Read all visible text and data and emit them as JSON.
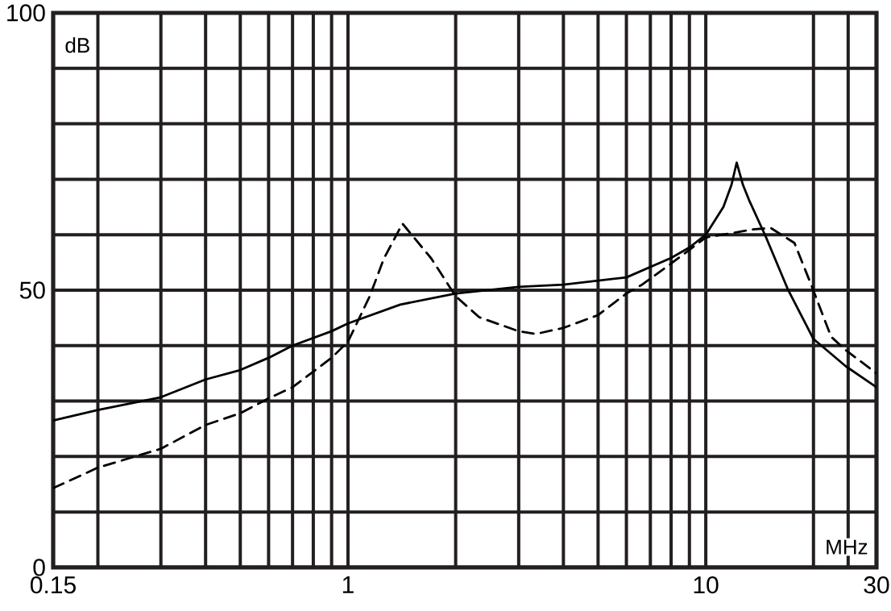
{
  "chart_data": {
    "type": "line",
    "xlabel": "MHz",
    "ylabel": "dB",
    "log": "x",
    "grid": true,
    "xlim": [
      0.15,
      30
    ],
    "ylim": [
      0,
      100
    ],
    "xticks": [
      0.15,
      {
        "value": 0.2,
        "label": null
      },
      {
        "value": 0.3,
        "label": null
      },
      {
        "value": 0.4,
        "label": null
      },
      {
        "value": 0.5,
        "label": null
      },
      {
        "value": 0.6,
        "label": null
      },
      {
        "value": 0.7,
        "label": null
      },
      {
        "value": 0.8,
        "label": null
      },
      {
        "value": 0.9,
        "label": null
      },
      1,
      {
        "value": 2,
        "label": null
      },
      {
        "value": 3,
        "label": null
      },
      {
        "value": 4,
        "label": null
      },
      {
        "value": 5,
        "label": null
      },
      {
        "value": 6,
        "label": null
      },
      {
        "value": 7,
        "label": null
      },
      {
        "value": 8,
        "label": null
      },
      {
        "value": 9,
        "label": null
      },
      10,
      {
        "value": 20,
        "label": null
      },
      {
        "value": 25,
        "label": null
      },
      30
    ],
    "yticks": [
      0,
      {
        "value": 10,
        "label": null
      },
      {
        "value": 20,
        "label": null
      },
      {
        "value": 30,
        "label": null
      },
      {
        "value": 40,
        "label": null
      },
      50,
      {
        "value": 60,
        "label": null
      },
      {
        "value": 70,
        "label": null
      },
      {
        "value": 80,
        "label": null
      },
      {
        "value": 90,
        "label": null
      },
      100
    ],
    "series": [
      {
        "color": "#000000",
        "line_style": "solid",
        "x": [
          0.15,
          0.2,
          0.3,
          0.4,
          0.5,
          0.6,
          0.7,
          0.9,
          1,
          1.4,
          2,
          3,
          4,
          6,
          8,
          9,
          10,
          11.2,
          11.8,
          12.2,
          12.7,
          13.2,
          14.7,
          17,
          20,
          24.6,
          30
        ],
        "values": [
          26.5,
          28.4,
          30.7,
          33.9,
          35.6,
          37.8,
          40,
          42.6,
          44,
          47.4,
          49.4,
          50.6,
          51,
          52.3,
          55.8,
          57.7,
          60,
          65,
          69,
          73,
          69,
          66.3,
          59.7,
          50,
          41.2,
          36.3,
          32.5
        ]
      },
      {
        "color": "#000000",
        "line_style": "dashed",
        "x": [
          0.15,
          0.2,
          0.3,
          0.4,
          0.5,
          0.6,
          0.7,
          0.9,
          1,
          1.15,
          1.26,
          1.42,
          1.71,
          2,
          2.33,
          3,
          3.35,
          4,
          5,
          6,
          6.6,
          8,
          10,
          13.7,
          15.2,
          17.7,
          19.7,
          22.4,
          24.6,
          30
        ],
        "values": [
          14.3,
          18,
          21.4,
          25.7,
          27.8,
          30.5,
          32.5,
          37.8,
          40.7,
          48.9,
          55.7,
          62,
          55.7,
          48.9,
          45.1,
          42.6,
          42.1,
          43.2,
          45.5,
          49.4,
          50.9,
          54.8,
          59.5,
          61,
          61.2,
          58.5,
          51,
          41.6,
          39.2,
          35
        ]
      }
    ]
  }
}
